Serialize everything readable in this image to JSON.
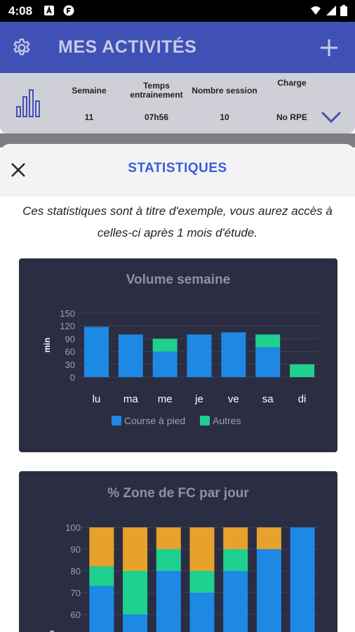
{
  "status": {
    "time": "4:08"
  },
  "app": {
    "title": "MES ACTIVITÉS"
  },
  "summary": {
    "columns": [
      {
        "header": "Semaine",
        "value": "11"
      },
      {
        "header": "Temps entrainement",
        "value": "07h56"
      },
      {
        "header": "Nombre session",
        "value": "10"
      },
      {
        "header": "Charge",
        "value": "No RPE"
      }
    ]
  },
  "sheet": {
    "title": "STATISTIQUES",
    "note": "Ces statistiques sont à titre d'exemple, vous aurez accès à celles-ci après 1 mois d'étude."
  },
  "colors": {
    "run": "#1e88e5",
    "other": "#1fd18e",
    "orange": "#e6a22c",
    "green": "#1fd18e",
    "blue": "#1e88e5",
    "card": "#2b2d42"
  },
  "chart_data": [
    {
      "type": "bar",
      "title": "Volume semaine",
      "ylabel": "min",
      "categories": [
        "lu",
        "ma",
        "me",
        "je",
        "ve",
        "sa",
        "di"
      ],
      "series": [
        {
          "name": "Course à pied",
          "values": [
            118,
            100,
            60,
            100,
            105,
            70,
            0
          ]
        },
        {
          "name": "Autres",
          "values": [
            0,
            0,
            30,
            0,
            0,
            30,
            30
          ]
        }
      ],
      "yticks": [
        "0",
        "30",
        "60",
        "90",
        "120",
        "150"
      ],
      "ylim": [
        0,
        150
      ],
      "legend": "bottom"
    },
    {
      "type": "bar",
      "title": "% Zone de FC par jour",
      "ylabel": "%",
      "stacked": true,
      "yticks": [
        "60",
        "70",
        "80",
        "90",
        "100"
      ],
      "ylim_visible": [
        55,
        100
      ],
      "columns": [
        {
          "blue": 73,
          "green": 82,
          "orange": 100
        },
        {
          "blue": 60,
          "green": 80,
          "orange": 100
        },
        {
          "blue": 80,
          "green": 90,
          "orange": 100
        },
        {
          "blue": 70,
          "green": 80,
          "orange": 100
        },
        {
          "blue": 80,
          "green": 90,
          "orange": 100
        },
        {
          "blue": 90,
          "green": 90,
          "orange": 100
        },
        {
          "blue": 100,
          "green": 100,
          "orange": 100
        }
      ]
    }
  ]
}
